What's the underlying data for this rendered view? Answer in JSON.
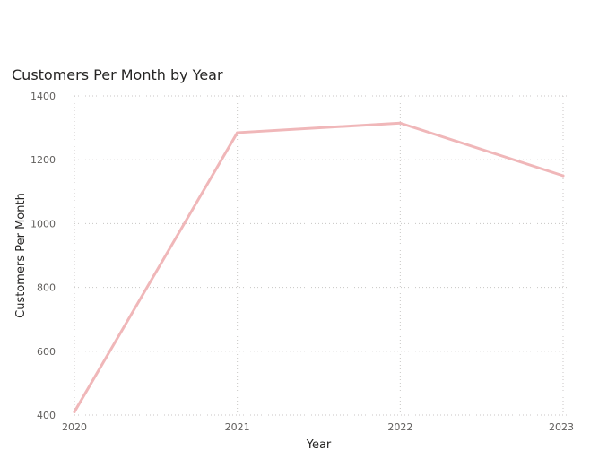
{
  "chart_data": {
    "type": "line",
    "title": "Customers Per Month by Year",
    "xlabel": "Year",
    "ylabel": "Customers Per Month",
    "x": [
      "2020",
      "2021",
      "2022",
      "2023"
    ],
    "series": [
      {
        "values": [
          410,
          1285,
          1315,
          1150
        ],
        "color": "#f0b7b9"
      }
    ],
    "ylim": [
      400,
      1400
    ],
    "yticks": [
      400,
      600,
      800,
      1000,
      1200,
      1400
    ],
    "grid": true,
    "grid_style": "dotted",
    "grid_color": "#c8c6c4"
  }
}
